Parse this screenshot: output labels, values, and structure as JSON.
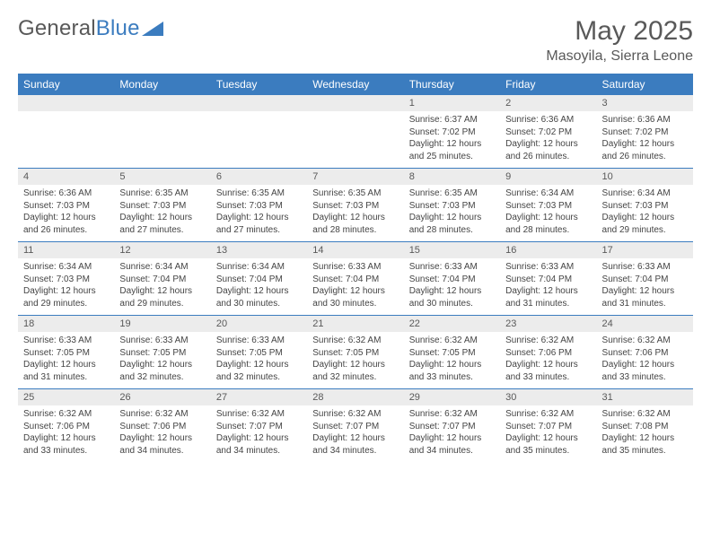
{
  "logo": {
    "text_a": "General",
    "text_b": "Blue"
  },
  "title": "May 2025",
  "location": "Masoyila, Sierra Leone",
  "colors": {
    "header_bg": "#3b7cbf",
    "header_fg": "#ffffff",
    "daynum_bg": "#ececec",
    "text_muted": "#595959",
    "row_border": "#3b7cbf"
  },
  "day_headers": [
    "Sunday",
    "Monday",
    "Tuesday",
    "Wednesday",
    "Thursday",
    "Friday",
    "Saturday"
  ],
  "weeks": [
    [
      {
        "num": "",
        "lines": []
      },
      {
        "num": "",
        "lines": []
      },
      {
        "num": "",
        "lines": []
      },
      {
        "num": "",
        "lines": []
      },
      {
        "num": "1",
        "lines": [
          "Sunrise: 6:37 AM",
          "Sunset: 7:02 PM",
          "Daylight: 12 hours and 25 minutes."
        ]
      },
      {
        "num": "2",
        "lines": [
          "Sunrise: 6:36 AM",
          "Sunset: 7:02 PM",
          "Daylight: 12 hours and 26 minutes."
        ]
      },
      {
        "num": "3",
        "lines": [
          "Sunrise: 6:36 AM",
          "Sunset: 7:02 PM",
          "Daylight: 12 hours and 26 minutes."
        ]
      }
    ],
    [
      {
        "num": "4",
        "lines": [
          "Sunrise: 6:36 AM",
          "Sunset: 7:03 PM",
          "Daylight: 12 hours and 26 minutes."
        ]
      },
      {
        "num": "5",
        "lines": [
          "Sunrise: 6:35 AM",
          "Sunset: 7:03 PM",
          "Daylight: 12 hours and 27 minutes."
        ]
      },
      {
        "num": "6",
        "lines": [
          "Sunrise: 6:35 AM",
          "Sunset: 7:03 PM",
          "Daylight: 12 hours and 27 minutes."
        ]
      },
      {
        "num": "7",
        "lines": [
          "Sunrise: 6:35 AM",
          "Sunset: 7:03 PM",
          "Daylight: 12 hours and 28 minutes."
        ]
      },
      {
        "num": "8",
        "lines": [
          "Sunrise: 6:35 AM",
          "Sunset: 7:03 PM",
          "Daylight: 12 hours and 28 minutes."
        ]
      },
      {
        "num": "9",
        "lines": [
          "Sunrise: 6:34 AM",
          "Sunset: 7:03 PM",
          "Daylight: 12 hours and 28 minutes."
        ]
      },
      {
        "num": "10",
        "lines": [
          "Sunrise: 6:34 AM",
          "Sunset: 7:03 PM",
          "Daylight: 12 hours and 29 minutes."
        ]
      }
    ],
    [
      {
        "num": "11",
        "lines": [
          "Sunrise: 6:34 AM",
          "Sunset: 7:03 PM",
          "Daylight: 12 hours and 29 minutes."
        ]
      },
      {
        "num": "12",
        "lines": [
          "Sunrise: 6:34 AM",
          "Sunset: 7:04 PM",
          "Daylight: 12 hours and 29 minutes."
        ]
      },
      {
        "num": "13",
        "lines": [
          "Sunrise: 6:34 AM",
          "Sunset: 7:04 PM",
          "Daylight: 12 hours and 30 minutes."
        ]
      },
      {
        "num": "14",
        "lines": [
          "Sunrise: 6:33 AM",
          "Sunset: 7:04 PM",
          "Daylight: 12 hours and 30 minutes."
        ]
      },
      {
        "num": "15",
        "lines": [
          "Sunrise: 6:33 AM",
          "Sunset: 7:04 PM",
          "Daylight: 12 hours and 30 minutes."
        ]
      },
      {
        "num": "16",
        "lines": [
          "Sunrise: 6:33 AM",
          "Sunset: 7:04 PM",
          "Daylight: 12 hours and 31 minutes."
        ]
      },
      {
        "num": "17",
        "lines": [
          "Sunrise: 6:33 AM",
          "Sunset: 7:04 PM",
          "Daylight: 12 hours and 31 minutes."
        ]
      }
    ],
    [
      {
        "num": "18",
        "lines": [
          "Sunrise: 6:33 AM",
          "Sunset: 7:05 PM",
          "Daylight: 12 hours and 31 minutes."
        ]
      },
      {
        "num": "19",
        "lines": [
          "Sunrise: 6:33 AM",
          "Sunset: 7:05 PM",
          "Daylight: 12 hours and 32 minutes."
        ]
      },
      {
        "num": "20",
        "lines": [
          "Sunrise: 6:33 AM",
          "Sunset: 7:05 PM",
          "Daylight: 12 hours and 32 minutes."
        ]
      },
      {
        "num": "21",
        "lines": [
          "Sunrise: 6:32 AM",
          "Sunset: 7:05 PM",
          "Daylight: 12 hours and 32 minutes."
        ]
      },
      {
        "num": "22",
        "lines": [
          "Sunrise: 6:32 AM",
          "Sunset: 7:05 PM",
          "Daylight: 12 hours and 33 minutes."
        ]
      },
      {
        "num": "23",
        "lines": [
          "Sunrise: 6:32 AM",
          "Sunset: 7:06 PM",
          "Daylight: 12 hours and 33 minutes."
        ]
      },
      {
        "num": "24",
        "lines": [
          "Sunrise: 6:32 AM",
          "Sunset: 7:06 PM",
          "Daylight: 12 hours and 33 minutes."
        ]
      }
    ],
    [
      {
        "num": "25",
        "lines": [
          "Sunrise: 6:32 AM",
          "Sunset: 7:06 PM",
          "Daylight: 12 hours and 33 minutes."
        ]
      },
      {
        "num": "26",
        "lines": [
          "Sunrise: 6:32 AM",
          "Sunset: 7:06 PM",
          "Daylight: 12 hours and 34 minutes."
        ]
      },
      {
        "num": "27",
        "lines": [
          "Sunrise: 6:32 AM",
          "Sunset: 7:07 PM",
          "Daylight: 12 hours and 34 minutes."
        ]
      },
      {
        "num": "28",
        "lines": [
          "Sunrise: 6:32 AM",
          "Sunset: 7:07 PM",
          "Daylight: 12 hours and 34 minutes."
        ]
      },
      {
        "num": "29",
        "lines": [
          "Sunrise: 6:32 AM",
          "Sunset: 7:07 PM",
          "Daylight: 12 hours and 34 minutes."
        ]
      },
      {
        "num": "30",
        "lines": [
          "Sunrise: 6:32 AM",
          "Sunset: 7:07 PM",
          "Daylight: 12 hours and 35 minutes."
        ]
      },
      {
        "num": "31",
        "lines": [
          "Sunrise: 6:32 AM",
          "Sunset: 7:08 PM",
          "Daylight: 12 hours and 35 minutes."
        ]
      }
    ]
  ]
}
